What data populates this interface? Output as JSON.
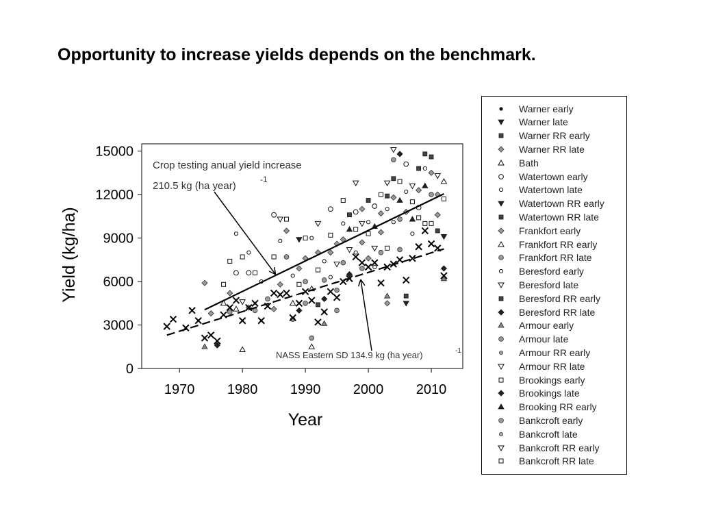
{
  "slide": {
    "title": "Opportunity to increase yields depends on the benchmark."
  },
  "chart_data": {
    "type": "scatter",
    "xlabel": "Year",
    "ylabel": "Yield (kg/ha)",
    "xlim": [
      1964,
      2015
    ],
    "ylim": [
      0,
      15500
    ],
    "x_ticks": [
      1970,
      1980,
      1990,
      2000,
      2010
    ],
    "y_ticks": [
      0,
      3000,
      6000,
      9000,
      12000,
      15000
    ],
    "grid": false,
    "legend_placement": "right",
    "annotations": {
      "crop_testing_line1": "Crop testing anual yield increase",
      "crop_testing_line2": "210.5 kg (ha year)",
      "crop_testing_exp": "-1",
      "nass": "NASS Eastern SD 134.9 kg (ha year)",
      "nass_exp": "-1"
    },
    "trendlines": [
      {
        "style": "solid",
        "x": [
          1974,
          2012
        ],
        "y": [
          4050,
          12050
        ],
        "slope": 210.5
      },
      {
        "style": "dashed",
        "x": [
          1968,
          2012
        ],
        "y": [
          2300,
          8250
        ],
        "slope": 134.9
      }
    ],
    "nass_points": [
      [
        1968,
        2900
      ],
      [
        1969,
        3400
      ],
      [
        1971,
        2800
      ],
      [
        1972,
        4000
      ],
      [
        1973,
        3300
      ],
      [
        1974,
        2100
      ],
      [
        1975,
        2300
      ],
      [
        1976,
        1900
      ],
      [
        1977,
        3700
      ],
      [
        1978,
        4200
      ],
      [
        1979,
        4700
      ],
      [
        1980,
        3300
      ],
      [
        1981,
        4200
      ],
      [
        1982,
        4500
      ],
      [
        1983,
        3300
      ],
      [
        1984,
        4300
      ],
      [
        1985,
        5200
      ],
      [
        1986,
        5100
      ],
      [
        1987,
        5200
      ],
      [
        1988,
        3500
      ],
      [
        1989,
        4500
      ],
      [
        1990,
        5300
      ],
      [
        1991,
        4700
      ],
      [
        1992,
        3200
      ],
      [
        1993,
        3900
      ],
      [
        1994,
        5300
      ],
      [
        1995,
        4900
      ],
      [
        1996,
        6000
      ],
      [
        1997,
        6200
      ],
      [
        1998,
        7700
      ],
      [
        1999,
        7300
      ],
      [
        2000,
        7000
      ],
      [
        2001,
        7300
      ],
      [
        2002,
        5900
      ],
      [
        2003,
        7000
      ],
      [
        2004,
        7200
      ],
      [
        2005,
        7500
      ],
      [
        2006,
        6100
      ],
      [
        2007,
        7600
      ],
      [
        2008,
        8400
      ],
      [
        2009,
        9500
      ],
      [
        2010,
        8600
      ],
      [
        2011,
        8300
      ],
      [
        2012,
        6400
      ]
    ],
    "series": [
      {
        "name": "Warner early",
        "marker": "dot"
      },
      {
        "name": "Warner late",
        "marker": "tri-down-filled"
      },
      {
        "name": "Warner RR early",
        "marker": "square-filled"
      },
      {
        "name": "Warner RR late",
        "marker": "diamond-gray"
      },
      {
        "name": "Bath",
        "marker": "tri-up-open"
      },
      {
        "name": "Watertown early",
        "marker": "circle-open"
      },
      {
        "name": "Watertown late",
        "marker": "circle-open-small"
      },
      {
        "name": "Watertown RR early",
        "marker": "tri-down-filled"
      },
      {
        "name": "Watertown RR late",
        "marker": "square-filled"
      },
      {
        "name": "Frankfort early",
        "marker": "diamond-gray"
      },
      {
        "name": "Frankfort RR early",
        "marker": "tri-up-open"
      },
      {
        "name": "Frankfort RR late",
        "marker": "circle-gray"
      },
      {
        "name": "Beresford early",
        "marker": "circle-open-small"
      },
      {
        "name": "Beresford late",
        "marker": "tri-down-open"
      },
      {
        "name": "Beresford RR early",
        "marker": "square-filled"
      },
      {
        "name": "Beresford RR late",
        "marker": "diamond-filled"
      },
      {
        "name": "Armour early",
        "marker": "tri-up-gray"
      },
      {
        "name": "Armour late",
        "marker": "circle-gray"
      },
      {
        "name": "Armour RR early",
        "marker": "circle-gray-small"
      },
      {
        "name": "Armour RR late",
        "marker": "tri-down-open"
      },
      {
        "name": "Brookings early",
        "marker": "square-open"
      },
      {
        "name": "Brookings late",
        "marker": "diamond-filled"
      },
      {
        "name": "Brooking RR early",
        "marker": "tri-up-filled"
      },
      {
        "name": "Bankcroft early",
        "marker": "circle-gray"
      },
      {
        "name": "Bankcroft late",
        "marker": "circle-gray-small"
      },
      {
        "name": "Bankcroft RR early",
        "marker": "tri-down-open"
      },
      {
        "name": "Bankcroft RR late",
        "marker": "square-open"
      }
    ],
    "trial_points": [
      [
        1974,
        5900,
        3
      ],
      [
        1974,
        1500,
        16
      ],
      [
        1975,
        3800,
        9
      ],
      [
        1976,
        1600,
        15
      ],
      [
        1977,
        5800,
        20
      ],
      [
        1977,
        4500,
        4
      ],
      [
        1978,
        7400,
        20
      ],
      [
        1978,
        5200,
        9
      ],
      [
        1978,
        3900,
        11
      ],
      [
        1979,
        9300,
        12
      ],
      [
        1979,
        6600,
        5
      ],
      [
        1979,
        4100,
        4
      ],
      [
        1980,
        1300,
        4
      ],
      [
        1980,
        7700,
        20
      ],
      [
        1980,
        4600,
        19
      ],
      [
        1981,
        8000,
        12
      ],
      [
        1981,
        6600,
        5
      ],
      [
        1981,
        4200,
        9
      ],
      [
        1982,
        6600,
        20
      ],
      [
        1982,
        4000,
        11
      ],
      [
        1983,
        6000,
        12
      ],
      [
        1984,
        4800,
        17
      ],
      [
        1985,
        10600,
        5
      ],
      [
        1985,
        7700,
        20
      ],
      [
        1985,
        4100,
        9
      ],
      [
        1986,
        10300,
        19
      ],
      [
        1986,
        8800,
        12
      ],
      [
        1986,
        5800,
        3
      ],
      [
        1987,
        10300,
        20
      ],
      [
        1987,
        9500,
        9
      ],
      [
        1987,
        7700,
        11
      ],
      [
        1988,
        6400,
        12
      ],
      [
        1988,
        4500,
        4
      ],
      [
        1988,
        3400,
        17
      ],
      [
        1989,
        8900,
        1
      ],
      [
        1989,
        6900,
        3
      ],
      [
        1989,
        5800,
        20
      ],
      [
        1989,
        4000,
        15
      ],
      [
        1990,
        9000,
        20
      ],
      [
        1990,
        7600,
        9
      ],
      [
        1990,
        6000,
        11
      ],
      [
        1990,
        4500,
        17
      ],
      [
        1991,
        9000,
        12
      ],
      [
        1991,
        5500,
        4
      ],
      [
        1991,
        2100,
        23
      ],
      [
        1991,
        1500,
        4
      ],
      [
        1992,
        10000,
        19
      ],
      [
        1992,
        8000,
        9
      ],
      [
        1992,
        6800,
        20
      ],
      [
        1992,
        4400,
        2
      ],
      [
        1993,
        7400,
        12
      ],
      [
        1993,
        6100,
        11
      ],
      [
        1993,
        4800,
        15
      ],
      [
        1993,
        3100,
        16
      ],
      [
        1994,
        11000,
        5
      ],
      [
        1994,
        9200,
        20
      ],
      [
        1994,
        8000,
        9
      ],
      [
        1994,
        6300,
        12
      ],
      [
        1995,
        8600,
        3
      ],
      [
        1995,
        7200,
        19
      ],
      [
        1995,
        5400,
        17
      ],
      [
        1995,
        4000,
        23
      ],
      [
        1996,
        11600,
        20
      ],
      [
        1996,
        10000,
        12
      ],
      [
        1996,
        8900,
        9
      ],
      [
        1996,
        7300,
        11
      ],
      [
        1997,
        10600,
        2
      ],
      [
        1997,
        9600,
        22
      ],
      [
        1997,
        8200,
        19
      ],
      [
        1997,
        6500,
        15
      ],
      [
        1998,
        12800,
        13
      ],
      [
        1998,
        10800,
        5
      ],
      [
        1998,
        9600,
        20
      ],
      [
        1998,
        8000,
        12
      ],
      [
        1999,
        11000,
        9
      ],
      [
        1999,
        10000,
        19
      ],
      [
        1999,
        8700,
        3
      ],
      [
        1999,
        6900,
        11
      ],
      [
        2000,
        11600,
        14
      ],
      [
        2000,
        10100,
        12
      ],
      [
        2000,
        9300,
        20
      ],
      [
        2000,
        7600,
        9
      ],
      [
        2001,
        11200,
        5
      ],
      [
        2001,
        9800,
        22
      ],
      [
        2001,
        8300,
        19
      ],
      [
        2001,
        7000,
        12
      ],
      [
        2002,
        12000,
        20
      ],
      [
        2002,
        10700,
        9
      ],
      [
        2002,
        9400,
        3
      ],
      [
        2002,
        8000,
        11
      ],
      [
        2003,
        12800,
        13
      ],
      [
        2003,
        11900,
        14
      ],
      [
        2003,
        11000,
        12
      ],
      [
        2003,
        8300,
        20
      ],
      [
        2003,
        5000,
        16
      ],
      [
        2003,
        4500,
        9
      ],
      [
        2004,
        15100,
        19
      ],
      [
        2004,
        14400,
        23
      ],
      [
        2004,
        13100,
        14
      ],
      [
        2004,
        11800,
        9
      ],
      [
        2004,
        10100,
        12
      ],
      [
        2005,
        14800,
        15
      ],
      [
        2005,
        12900,
        20
      ],
      [
        2005,
        11600,
        22
      ],
      [
        2005,
        10300,
        11
      ],
      [
        2005,
        8200,
        17
      ],
      [
        2006,
        14100,
        5
      ],
      [
        2006,
        12200,
        12
      ],
      [
        2006,
        10800,
        9
      ],
      [
        2006,
        5000,
        14
      ],
      [
        2006,
        4500,
        7
      ],
      [
        2007,
        12600,
        19
      ],
      [
        2007,
        11500,
        20
      ],
      [
        2007,
        10300,
        22
      ],
      [
        2007,
        9300,
        12
      ],
      [
        2008,
        13800,
        14
      ],
      [
        2008,
        12300,
        9
      ],
      [
        2008,
        11100,
        5
      ],
      [
        2008,
        10400,
        20
      ],
      [
        2009,
        14800,
        8
      ],
      [
        2009,
        13800,
        12
      ],
      [
        2009,
        12600,
        22
      ],
      [
        2009,
        10000,
        20
      ],
      [
        2010,
        14600,
        14
      ],
      [
        2010,
        13500,
        9
      ],
      [
        2010,
        12000,
        23
      ],
      [
        2010,
        10000,
        20
      ],
      [
        2011,
        13300,
        19
      ],
      [
        2011,
        12000,
        3
      ],
      [
        2011,
        10600,
        9
      ],
      [
        2011,
        9500,
        14
      ],
      [
        2012,
        12900,
        4
      ],
      [
        2012,
        11700,
        20
      ],
      [
        2012,
        9100,
        7
      ],
      [
        2012,
        6900,
        15
      ],
      [
        2012,
        6200,
        16
      ]
    ]
  }
}
